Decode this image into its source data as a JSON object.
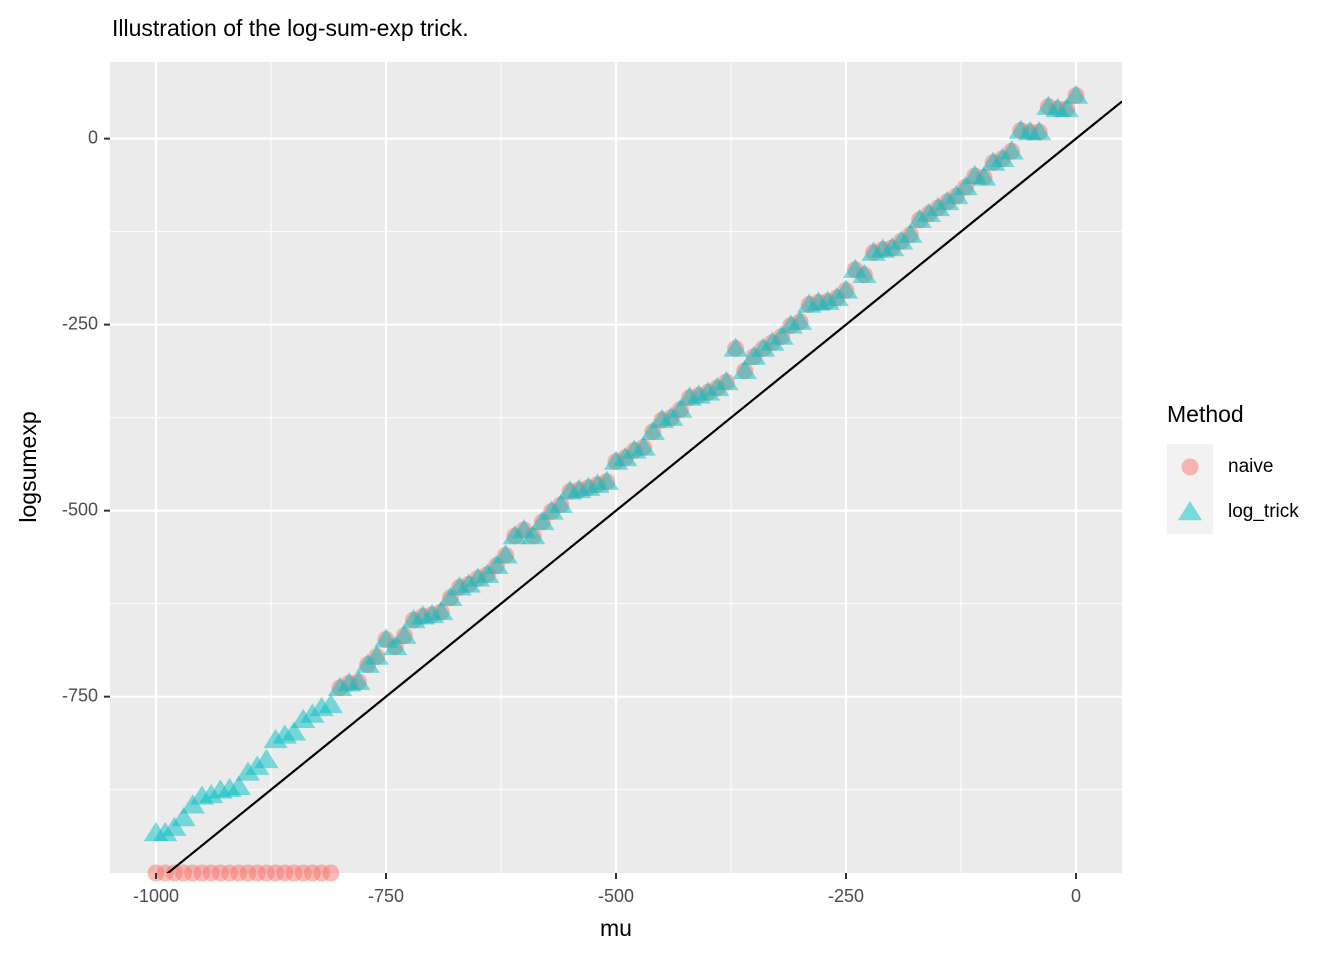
{
  "chart_data": {
    "type": "scatter",
    "title": "Illustration of the log-sum-exp trick.",
    "x_label": "mu",
    "y_label": "logsumexp",
    "legend_title": "Method",
    "legend_position": "right",
    "x": [
      -1000,
      -990,
      -980,
      -970,
      -960,
      -950,
      -940,
      -930,
      -920,
      -910,
      -900,
      -890,
      -880,
      -870,
      -860,
      -850,
      -840,
      -830,
      -820,
      -810,
      -800,
      -790,
      -780,
      -770,
      -760,
      -750,
      -740,
      -730,
      -720,
      -710,
      -700,
      -690,
      -680,
      -670,
      -660,
      -650,
      -640,
      -630,
      -620,
      -610,
      -600,
      -590,
      -580,
      -570,
      -560,
      -550,
      -540,
      -530,
      -520,
      -510,
      -500,
      -490,
      -480,
      -470,
      -460,
      -450,
      -440,
      -430,
      -420,
      -410,
      -400,
      -390,
      -380,
      -370,
      -360,
      -350,
      -340,
      -330,
      -320,
      -310,
      -300,
      -290,
      -280,
      -270,
      -260,
      -250,
      -240,
      -230,
      -220,
      -210,
      -200,
      -190,
      -180,
      -170,
      -160,
      -150,
      -140,
      -130,
      -120,
      -110,
      -100,
      -90,
      -80,
      -70,
      -60,
      -50,
      -40,
      -30,
      -20,
      -10,
      0
    ],
    "series": [
      {
        "name": "naive",
        "color": "#F8766D",
        "shape": "circle",
        "values": [
          -987,
          -987,
          -987,
          -987,
          -987,
          -987,
          -987,
          -987,
          -987,
          -987,
          -987,
          -987,
          -987,
          -987,
          -987,
          -987,
          -987,
          -987,
          -987,
          -987,
          -738,
          -732,
          -730,
          -707,
          -696,
          -673,
          -683,
          -668,
          -647,
          -642,
          -640,
          -636,
          -617,
          -603,
          -599,
          -591,
          -586,
          -574,
          -560,
          -534,
          -526,
          -534,
          -515,
          -501,
          -492,
          -474,
          -472,
          -469,
          -465,
          -461,
          -434,
          -429,
          -419,
          -415,
          -394,
          -378,
          -375,
          -364,
          -348,
          -345,
          -341,
          -335,
          -327,
          -282,
          -312,
          -293,
          -282,
          -274,
          -266,
          -251,
          -246,
          -223,
          -220,
          -219,
          -214,
          -204,
          -176,
          -183,
          -153,
          -149,
          -147,
          -138,
          -129,
          -109,
          -101,
          -93,
          -85,
          -77,
          -65,
          -50,
          -52,
          -32,
          -27,
          -17,
          11,
          9,
          9,
          43,
          40,
          40,
          58
        ]
      },
      {
        "name": "log_trick",
        "color": "#00BFC4",
        "shape": "triangle",
        "values": [
          -933,
          -933,
          -926,
          -913,
          -896,
          -884,
          -882,
          -876,
          -874,
          -871,
          -852,
          -844,
          -835,
          -808,
          -802,
          -798,
          -781,
          -774,
          -765,
          -761,
          -738,
          -732,
          -730,
          -707,
          -696,
          -673,
          -683,
          -668,
          -647,
          -642,
          -640,
          -636,
          -617,
          -603,
          -599,
          -591,
          -586,
          -574,
          -560,
          -534,
          -526,
          -534,
          -515,
          -501,
          -492,
          -474,
          -472,
          -469,
          -465,
          -461,
          -434,
          -429,
          -419,
          -415,
          -394,
          -378,
          -375,
          -364,
          -348,
          -345,
          -341,
          -335,
          -327,
          -282,
          -312,
          -293,
          -282,
          -274,
          -266,
          -251,
          -246,
          -223,
          -220,
          -219,
          -214,
          -204,
          -176,
          -183,
          -153,
          -149,
          -147,
          -138,
          -129,
          -109,
          -101,
          -93,
          -85,
          -77,
          -65,
          -50,
          -52,
          -32,
          -27,
          -17,
          11,
          9,
          9,
          43,
          40,
          40,
          58
        ]
      }
    ],
    "reference_line": {
      "slope": 1,
      "intercept": 0,
      "color": "#000000"
    },
    "xlim": [
      -1050,
      50
    ],
    "xticks": [
      -1000,
      -750,
      -500,
      -250,
      0
    ],
    "ylim": [
      -987,
      103
    ],
    "yticks": [
      -750,
      -500,
      -250,
      0
    ],
    "grid": true
  }
}
